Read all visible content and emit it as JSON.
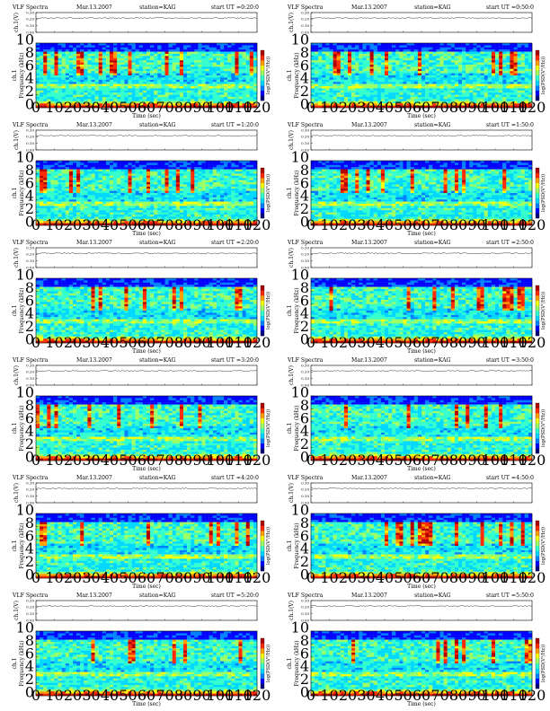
{
  "page": {
    "title": "VLF Spectra",
    "date": "Mar.13.2007",
    "station": "station=KAG"
  },
  "colors": {
    "colormap": [
      "#00007f",
      "#0000ff",
      "#0080ff",
      "#00d8ff",
      "#33ffcc",
      "#9cff63",
      "#f4ff0b",
      "#ffa000",
      "#ff2a00",
      "#b00000"
    ],
    "line": "#000000"
  },
  "chart_data": [
    {
      "type": "heatmap",
      "title": "VLF Spectra",
      "date": "Mar.13.2007",
      "station": "station=KAG",
      "start_label": "start UT =0:20:0",
      "xlabel": "Time (sec)",
      "ylabel_line1": "ch.1",
      "ylabel_line2": "Frequency (kHz)",
      "top_ylabel": "ch.1(V)",
      "colorbar_label": "log(PSD(V²/Hz))",
      "xlim": [
        0,
        120
      ],
      "ylim": [
        0,
        10
      ],
      "top_ylim": [
        0,
        0.3
      ],
      "xticks": [
        "0",
        "10",
        "20",
        "30",
        "40",
        "50",
        "60",
        "70",
        "80",
        "90",
        "100",
        "110",
        "120"
      ],
      "yticks": [
        "0",
        "2",
        "4",
        "6",
        "8",
        "10"
      ],
      "top_yticks": [
        "0.00",
        "0.10",
        "0.20",
        "0.30"
      ]
    },
    {
      "type": "heatmap",
      "title": "VLF Spectra",
      "date": "Mar.13.2007",
      "station": "station=KAG",
      "start_label": "start UT =0:50:0",
      "xlabel": "Time (sec)",
      "ylabel_line1": "ch.1",
      "ylabel_line2": "Frequency (kHz)",
      "top_ylabel": "ch.1(V)",
      "colorbar_label": "log(PSD(V²/Hz))",
      "xlim": [
        0,
        120
      ],
      "ylim": [
        0,
        10
      ],
      "top_ylim": [
        0,
        0.3
      ],
      "xticks": [
        "0",
        "10",
        "20",
        "30",
        "40",
        "50",
        "60",
        "70",
        "80",
        "90",
        "100",
        "110",
        "120"
      ],
      "yticks": [
        "0",
        "2",
        "4",
        "6",
        "8",
        "10"
      ],
      "top_yticks": [
        "0.00",
        "0.10",
        "0.20",
        "0.30"
      ]
    },
    {
      "type": "heatmap",
      "title": "VLF Spectra",
      "date": "Mar.13.2007",
      "station": "station=KAG",
      "start_label": "start UT =1:20:0",
      "xlabel": "Time (sec)",
      "ylabel_line1": "ch.1",
      "ylabel_line2": "Frequency (kHz)",
      "top_ylabel": "ch.1(V)",
      "colorbar_label": "log(PSD(V²/Hz))",
      "xlim": [
        0,
        120
      ],
      "ylim": [
        0,
        10
      ],
      "top_ylim": [
        0,
        0.3
      ],
      "xticks": [
        "0",
        "10",
        "20",
        "30",
        "40",
        "50",
        "60",
        "70",
        "80",
        "90",
        "100",
        "110",
        "120"
      ],
      "yticks": [
        "0",
        "2",
        "4",
        "6",
        "8",
        "10"
      ],
      "top_yticks": [
        "0.00",
        "0.10",
        "0.20",
        "0.30"
      ]
    },
    {
      "type": "heatmap",
      "title": "VLF Spectra",
      "date": "Mar.13.2007",
      "station": "station=KAG",
      "start_label": "start UT =1:50:0",
      "xlabel": "Time (sec)",
      "ylabel_line1": "ch.1",
      "ylabel_line2": "Frequency (kHz)",
      "top_ylabel": "ch.1(V)",
      "colorbar_label": "log(PSD(V²/Hz))",
      "xlim": [
        0,
        120
      ],
      "ylim": [
        0,
        10
      ],
      "top_ylim": [
        0,
        0.3
      ],
      "xticks": [
        "0",
        "10",
        "20",
        "30",
        "40",
        "50",
        "60",
        "70",
        "80",
        "90",
        "100",
        "110",
        "120"
      ],
      "yticks": [
        "0",
        "2",
        "4",
        "6",
        "8",
        "10"
      ],
      "top_yticks": [
        "0.00",
        "0.10",
        "0.20",
        "0.30"
      ]
    },
    {
      "type": "heatmap",
      "title": "VLF Spectra",
      "date": "Mar.13.2007",
      "station": "station=KAG",
      "start_label": "start UT =2:20:0",
      "xlabel": "Time (sec)",
      "ylabel_line1": "ch.1",
      "ylabel_line2": "Frequency (kHz)",
      "top_ylabel": "ch.1(V)",
      "colorbar_label": "log(PSD(V²/Hz))",
      "xlim": [
        0,
        120
      ],
      "ylim": [
        0,
        10
      ],
      "top_ylim": [
        0,
        0.3
      ],
      "xticks": [
        "0",
        "10",
        "20",
        "30",
        "40",
        "50",
        "60",
        "70",
        "80",
        "90",
        "100",
        "110",
        "120"
      ],
      "yticks": [
        "0",
        "2",
        "4",
        "6",
        "8",
        "10"
      ],
      "top_yticks": [
        "0.00",
        "0.10",
        "0.20",
        "0.30"
      ]
    },
    {
      "type": "heatmap",
      "title": "VLF Spectra",
      "date": "Mar.13.2007",
      "station": "station=KAG",
      "start_label": "start UT =2:50:0",
      "xlabel": "Time (sec)",
      "ylabel_line1": "ch.1",
      "ylabel_line2": "Frequency (kHz)",
      "top_ylabel": "ch.1(V)",
      "colorbar_label": "log(PSD(V²/Hz))",
      "xlim": [
        0,
        120
      ],
      "ylim": [
        0,
        10
      ],
      "top_ylim": [
        0,
        0.3
      ],
      "xticks": [
        "0",
        "10",
        "20",
        "30",
        "40",
        "50",
        "60",
        "70",
        "80",
        "90",
        "100",
        "110",
        "120"
      ],
      "yticks": [
        "0",
        "2",
        "4",
        "6",
        "8",
        "10"
      ],
      "top_yticks": [
        "0.00",
        "0.10",
        "0.20",
        "0.30"
      ]
    },
    {
      "type": "heatmap",
      "title": "VLF Spectra",
      "date": "Mar.13.2007",
      "station": "station=KAG",
      "start_label": "start UT =3:20:0",
      "xlabel": "Time (sec)",
      "ylabel_line1": "ch.1",
      "ylabel_line2": "Frequency (kHz)",
      "top_ylabel": "ch.1(V)",
      "colorbar_label": "log(PSD(V²/Hz))",
      "xlim": [
        0,
        120
      ],
      "ylim": [
        0,
        10
      ],
      "top_ylim": [
        0,
        0.3
      ],
      "xticks": [
        "0",
        "10",
        "20",
        "30",
        "40",
        "50",
        "60",
        "70",
        "80",
        "90",
        "100",
        "110",
        "120"
      ],
      "yticks": [
        "0",
        "2",
        "4",
        "6",
        "8",
        "10"
      ],
      "top_yticks": [
        "0.00",
        "0.10",
        "0.20",
        "0.30"
      ]
    },
    {
      "type": "heatmap",
      "title": "VLF Spectra",
      "date": "Mar.13.2007",
      "station": "station=KAG",
      "start_label": "start UT =3:50:0",
      "xlabel": "Time (sec)",
      "ylabel_line1": "ch.1",
      "ylabel_line2": "Frequency (kHz)",
      "top_ylabel": "ch.1(V)",
      "colorbar_label": "log(PSD(V²/Hz))",
      "xlim": [
        0,
        120
      ],
      "ylim": [
        0,
        10
      ],
      "top_ylim": [
        0,
        0.3
      ],
      "xticks": [
        "0",
        "10",
        "20",
        "30",
        "40",
        "50",
        "60",
        "70",
        "80",
        "90",
        "100",
        "110",
        "120"
      ],
      "yticks": [
        "0",
        "2",
        "4",
        "6",
        "8",
        "10"
      ],
      "top_yticks": [
        "0.00",
        "0.10",
        "0.20",
        "0.30"
      ]
    },
    {
      "type": "heatmap",
      "title": "VLF Spectra",
      "date": "Mar.13.2007",
      "station": "station=KAG",
      "start_label": "start UT =4:20:0",
      "xlabel": "Time (sec)",
      "ylabel_line1": "ch.1",
      "ylabel_line2": "Frequency (kHz)",
      "top_ylabel": "ch.1(V)",
      "colorbar_label": "log(PSD(V²/Hz))",
      "xlim": [
        0,
        120
      ],
      "ylim": [
        0,
        10
      ],
      "top_ylim": [
        0,
        0.3
      ],
      "xticks": [
        "0",
        "10",
        "20",
        "30",
        "40",
        "50",
        "60",
        "70",
        "80",
        "90",
        "100",
        "110",
        "120"
      ],
      "yticks": [
        "0",
        "2",
        "4",
        "6",
        "8",
        "10"
      ],
      "top_yticks": [
        "0.00",
        "0.10",
        "0.20",
        "0.30"
      ]
    },
    {
      "type": "heatmap",
      "title": "VLF Spectra",
      "date": "Mar.13.2007",
      "station": "station=KAG",
      "start_label": "start UT =4:50:0",
      "xlabel": "Time (sec)",
      "ylabel_line1": "ch.1",
      "ylabel_line2": "Frequency (kHz)",
      "top_ylabel": "ch.1(V)",
      "colorbar_label": "log(PSD(V²/Hz))",
      "xlim": [
        0,
        120
      ],
      "ylim": [
        0,
        10
      ],
      "top_ylim": [
        0,
        0.3
      ],
      "xticks": [
        "0",
        "10",
        "20",
        "30",
        "40",
        "50",
        "60",
        "70",
        "80",
        "90",
        "100",
        "110",
        "120"
      ],
      "yticks": [
        "0",
        "2",
        "4",
        "6",
        "8",
        "10"
      ],
      "top_yticks": [
        "0.00",
        "0.10",
        "0.20",
        "0.30"
      ]
    },
    {
      "type": "heatmap",
      "title": "VLF Spectra",
      "date": "Mar.13.2007",
      "station": "station=KAG",
      "start_label": "start UT =5:20:0",
      "xlabel": "Time (sec)",
      "ylabel_line1": "ch.1",
      "ylabel_line2": "Frequency (kHz)",
      "top_ylabel": "ch.1(V)",
      "colorbar_label": "log(PSD(V²/Hz))",
      "xlim": [
        0,
        120
      ],
      "ylim": [
        0,
        10
      ],
      "top_ylim": [
        0,
        0.3
      ],
      "xticks": [
        "0",
        "10",
        "20",
        "30",
        "40",
        "50",
        "60",
        "70",
        "80",
        "90",
        "100",
        "110",
        "120"
      ],
      "yticks": [
        "0",
        "2",
        "4",
        "6",
        "8",
        "10"
      ],
      "top_yticks": [
        "0.00",
        "0.10",
        "0.20",
        "0.30"
      ]
    },
    {
      "type": "heatmap",
      "title": "VLF Spectra",
      "date": "Mar.13.2007",
      "station": "station=KAG",
      "start_label": "start UT =5:50:0",
      "xlabel": "Time (sec)",
      "ylabel_line1": "ch.1",
      "ylabel_line2": "Frequency (kHz)",
      "top_ylabel": "ch.1(V)",
      "colorbar_label": "log(PSD(V²/Hz))",
      "xlim": [
        0,
        120
      ],
      "ylim": [
        0,
        10
      ],
      "top_ylim": [
        0,
        0.3
      ],
      "xticks": [
        "0",
        "10",
        "20",
        "30",
        "40",
        "50",
        "60",
        "70",
        "80",
        "90",
        "100",
        "110",
        "120"
      ],
      "yticks": [
        "0",
        "2",
        "4",
        "6",
        "8",
        "10"
      ],
      "top_yticks": [
        "0.00",
        "0.10",
        "0.20",
        "0.30"
      ]
    }
  ]
}
